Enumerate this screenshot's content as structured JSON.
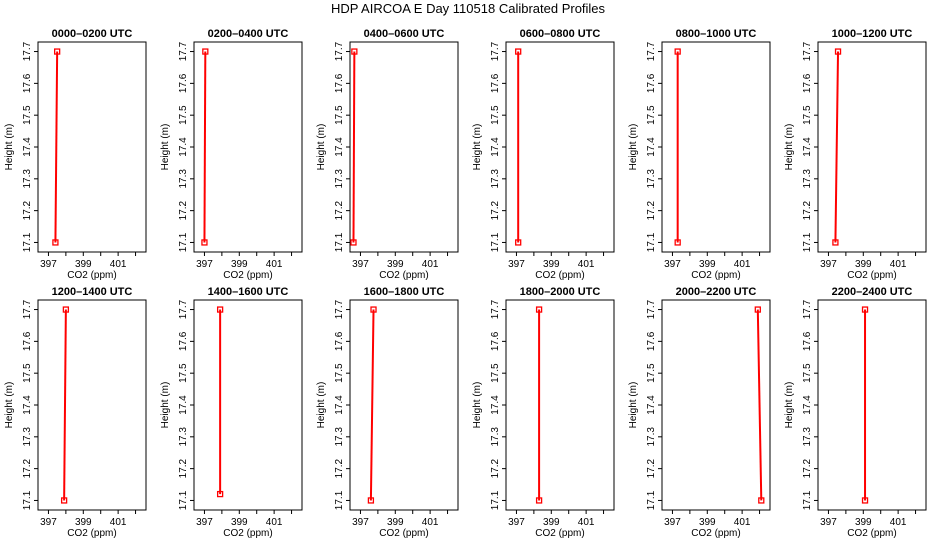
{
  "title": "HDP AIRCOA E  Day 110518  Calibrated Profiles",
  "colors": {
    "profile": "#ff0000",
    "axes": "#000000"
  },
  "chart_data": {
    "type": "line",
    "xlabel": "CO2 (ppm)",
    "ylabel": "Height (m)",
    "xlim": [
      396.4,
      402.6
    ],
    "ylim": [
      17.07,
      17.73
    ],
    "xticks": [
      397,
      398,
      399,
      400,
      401,
      402
    ],
    "xtick_labels": [
      "397",
      "",
      "399",
      "",
      "401",
      ""
    ],
    "yticks": [
      17.1,
      17.2,
      17.3,
      17.4,
      17.5,
      17.6,
      17.7
    ],
    "ytick_labels": [
      "17.1",
      "17.2",
      "17.3",
      "17.4",
      "17.5",
      "17.6",
      "17.7"
    ],
    "grid": false,
    "panels": [
      {
        "title": "0000–0200 UTC",
        "x": [
          397.4,
          397.5
        ],
        "y": [
          17.1,
          17.7
        ]
      },
      {
        "title": "0200–0400 UTC",
        "x": [
          397.0,
          397.05
        ],
        "y": [
          17.1,
          17.7
        ]
      },
      {
        "title": "0400–0600 UTC",
        "x": [
          396.6,
          396.65
        ],
        "y": [
          17.1,
          17.7
        ]
      },
      {
        "title": "0600–0800 UTC",
        "x": [
          397.1,
          397.1
        ],
        "y": [
          17.1,
          17.7
        ]
      },
      {
        "title": "0800–1000 UTC",
        "x": [
          397.3,
          397.3
        ],
        "y": [
          17.1,
          17.7
        ]
      },
      {
        "title": "1000–1200 UTC",
        "x": [
          397.4,
          397.55
        ],
        "y": [
          17.1,
          17.7
        ]
      },
      {
        "title": "1200–1400 UTC",
        "x": [
          397.9,
          398.0
        ],
        "y": [
          17.1,
          17.7
        ]
      },
      {
        "title": "1400–1600 UTC",
        "x": [
          397.9,
          397.9
        ],
        "y": [
          17.12,
          17.7
        ]
      },
      {
        "title": "1600–1800 UTC",
        "x": [
          397.6,
          397.75
        ],
        "y": [
          17.1,
          17.7
        ]
      },
      {
        "title": "1800–2000 UTC",
        "x": [
          398.3,
          398.3
        ],
        "y": [
          17.1,
          17.7
        ]
      },
      {
        "title": "2000–2200 UTC",
        "x": [
          402.1,
          401.9
        ],
        "y": [
          17.1,
          17.7
        ]
      },
      {
        "title": "2200–2400 UTC",
        "x": [
          399.1,
          399.1
        ],
        "y": [
          17.1,
          17.7
        ]
      }
    ]
  }
}
